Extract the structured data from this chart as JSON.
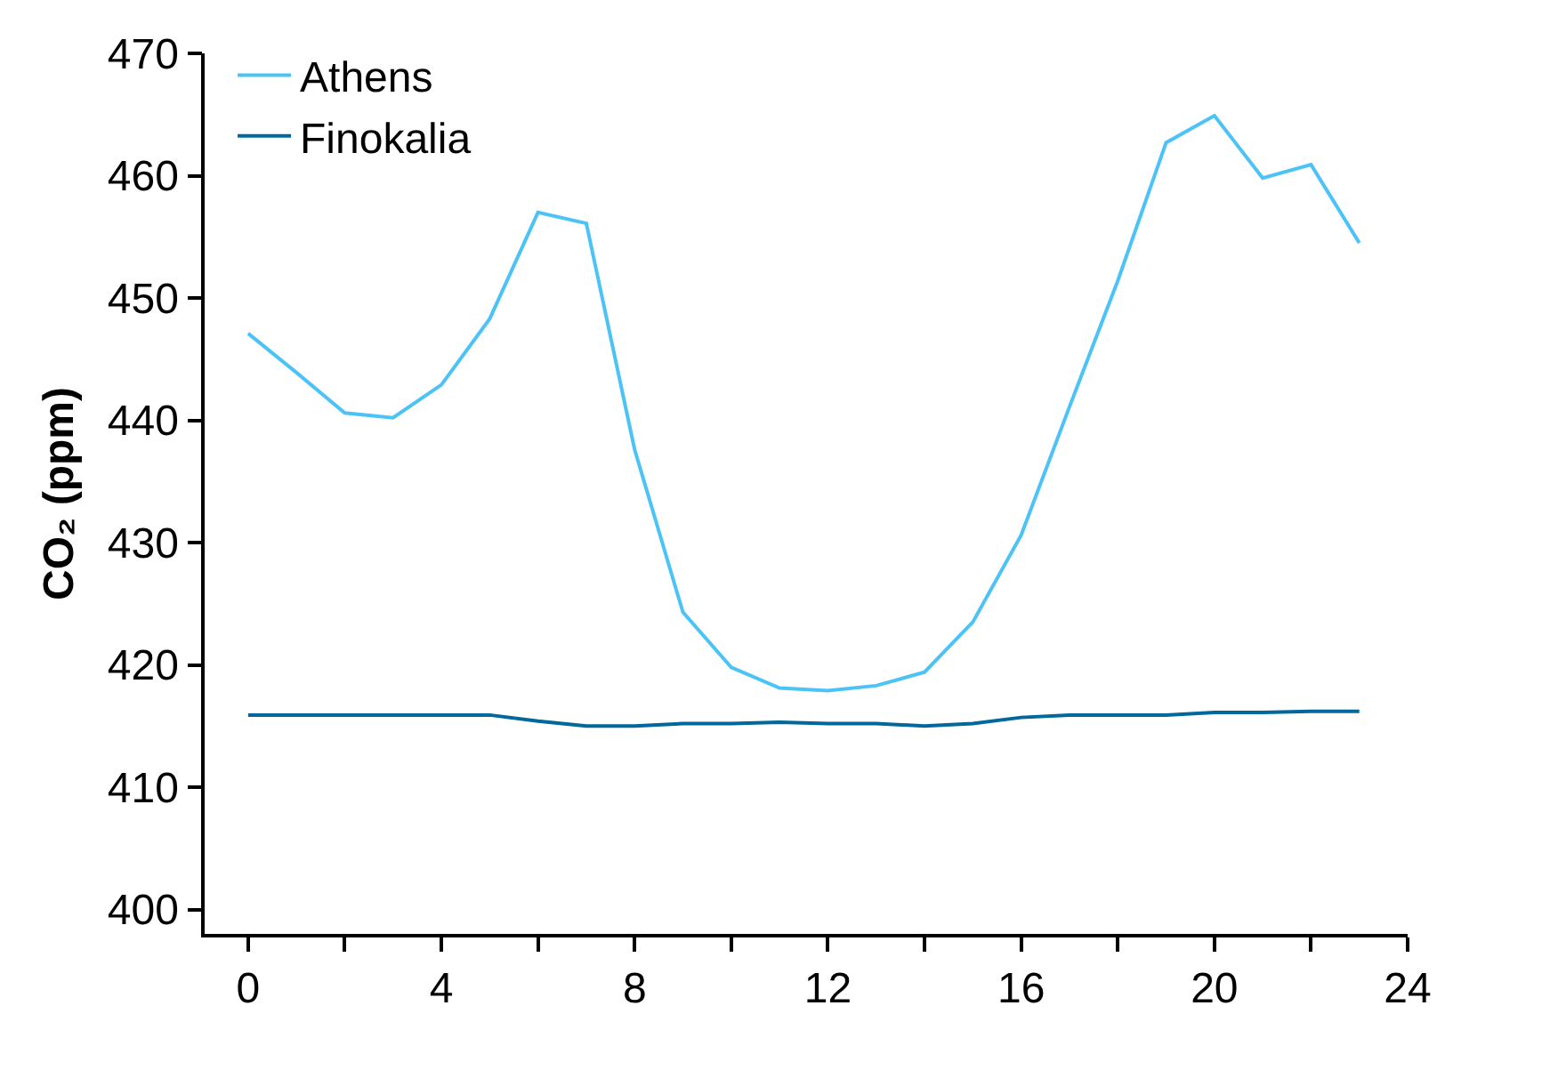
{
  "chart_data": {
    "type": "line",
    "ylabel": "CO₂ (ppm)",
    "x": [
      0,
      1,
      2,
      3,
      4,
      5,
      6,
      7,
      8,
      9,
      10,
      11,
      12,
      13,
      14,
      15,
      16,
      17,
      18,
      19,
      20,
      21,
      22,
      23
    ],
    "series": [
      {
        "name": "Athens",
        "color": "#4cc3f7",
        "values": [
          447.1,
          443.9,
          440.6,
          440.2,
          442.9,
          448.3,
          457.0,
          456.1,
          437.6,
          424.3,
          419.8,
          418.1,
          417.9,
          418.3,
          419.4,
          423.5,
          430.6,
          441.1,
          451.4,
          462.7,
          464.9,
          459.8,
          460.9,
          454.5
        ]
      },
      {
        "name": "Finokalia",
        "color": "#00689a",
        "values": [
          415.9,
          415.9,
          415.9,
          415.9,
          415.9,
          415.9,
          415.4,
          415.0,
          415.0,
          415.2,
          415.2,
          415.3,
          415.2,
          415.2,
          415.0,
          415.2,
          415.7,
          415.9,
          415.9,
          415.9,
          416.1,
          416.1,
          416.2,
          416.2
        ]
      }
    ],
    "xlim": [
      -0.9,
      24
    ],
    "ylim": [
      398,
      470
    ],
    "xticks": [
      0,
      {
        "value": 2,
        "label": null
      },
      4,
      {
        "value": 6,
        "label": null
      },
      8,
      {
        "value": 10,
        "label": null
      },
      12,
      {
        "value": 14,
        "label": null
      },
      16,
      {
        "value": 18,
        "label": null
      },
      20,
      {
        "value": 22,
        "label": null
      },
      24
    ],
    "yticks": [
      400,
      410,
      420,
      430,
      440,
      450,
      460,
      470
    ],
    "legend": "top left",
    "marker": "none",
    "line_style": "solid"
  }
}
